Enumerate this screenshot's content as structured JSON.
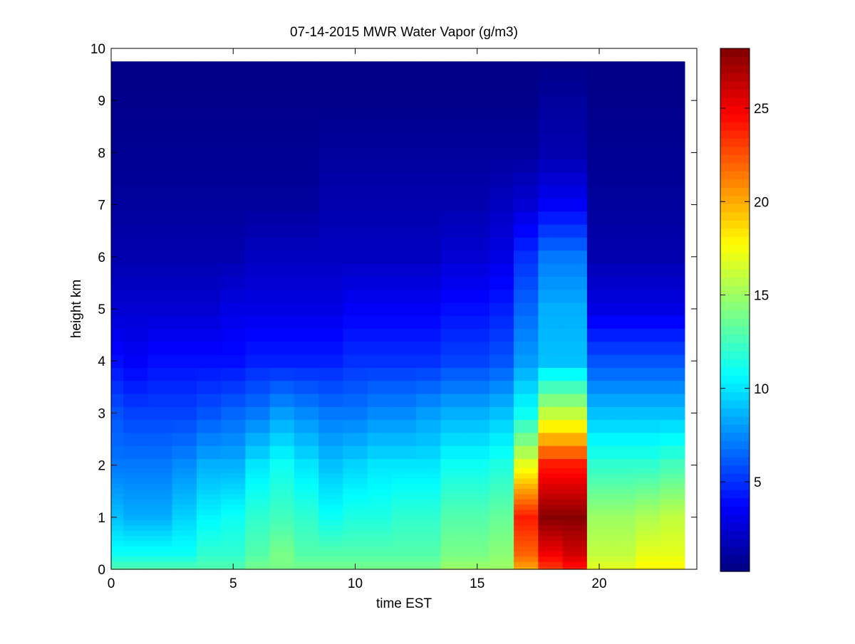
{
  "chart_data": {
    "type": "heatmap",
    "title": "07-14-2015 MWR Water Vapor (g/m3)",
    "xlabel": "time EST",
    "ylabel": "height km",
    "xlim": [
      0,
      24
    ],
    "ylim": [
      0,
      10
    ],
    "x_ticks": [
      0,
      5,
      10,
      15,
      20
    ],
    "y_ticks": [
      0,
      1,
      2,
      3,
      4,
      5,
      6,
      7,
      8,
      9,
      10
    ],
    "colormap": "jet",
    "colorbar": {
      "range": [
        0.2,
        28.2
      ],
      "ticks": [
        5,
        10,
        15,
        20,
        25
      ]
    },
    "x_centers": [
      0,
      1,
      2,
      3,
      4,
      5,
      6,
      7,
      8,
      9,
      10,
      11,
      12,
      13,
      14,
      15,
      16,
      17,
      18,
      19,
      20,
      21,
      22,
      23
    ],
    "heights": [
      0,
      0.1,
      0.2,
      0.3,
      0.4,
      0.5,
      0.6,
      0.7,
      0.8,
      0.9,
      1.0,
      1.1,
      1.2,
      1.3,
      1.4,
      1.5,
      1.6,
      1.7,
      1.8,
      1.9,
      2.0,
      2.25,
      2.5,
      2.75,
      3.0,
      3.25,
      3.5,
      3.75,
      4.0,
      4.25,
      4.5,
      4.75,
      5.0,
      5.25,
      5.5,
      5.75,
      6.0,
      6.25,
      6.5,
      6.75,
      7.0,
      7.25,
      7.5,
      7.75,
      8.0,
      8.25,
      8.5,
      8.75,
      9.0,
      9.25,
      9.5,
      9.75
    ],
    "profiles": {
      "knots_h": [
        0,
        0.3,
        1,
        2,
        3,
        4,
        5,
        6,
        7,
        8,
        9,
        9.75
      ],
      "columns": [
        [
          13,
          11,
          9,
          7,
          6,
          4,
          2.5,
          1.5,
          1,
          0.7,
          0.5,
          0.4
        ],
        [
          13,
          11,
          8.5,
          7,
          5.5,
          3.5,
          2.5,
          1.5,
          1,
          0.7,
          0.5,
          0.4
        ],
        [
          13,
          11,
          8.5,
          7,
          5.5,
          4,
          2.5,
          1.5,
          1,
          0.7,
          0.5,
          0.4
        ],
        [
          13,
          11,
          9.5,
          7.5,
          5.5,
          4,
          2.5,
          1.5,
          1,
          0.7,
          0.5,
          0.4
        ],
        [
          13,
          12,
          10.5,
          8.5,
          6,
          4,
          2.5,
          1.5,
          1,
          0.7,
          0.5,
          0.4
        ],
        [
          13,
          12,
          11,
          8.5,
          6.5,
          4,
          3,
          1.5,
          1,
          0.7,
          0.5,
          0.4
        ],
        [
          14,
          13,
          12,
          10,
          7,
          4.5,
          3,
          2,
          1,
          0.7,
          0.5,
          0.4
        ],
        [
          14,
          14,
          12.5,
          11,
          8,
          4.5,
          3,
          2,
          1,
          0.7,
          0.5,
          0.4
        ],
        [
          14,
          13,
          12,
          10,
          7.5,
          4.5,
          3,
          2,
          1,
          0.7,
          0.5,
          0.4
        ],
        [
          14,
          13,
          11,
          9,
          7,
          4.5,
          3,
          2,
          1.5,
          1,
          0.5,
          0.4
        ],
        [
          14,
          13,
          11.5,
          9.5,
          7,
          5,
          3.5,
          2,
          1.5,
          1,
          0.5,
          0.4
        ],
        [
          14,
          13,
          11.5,
          10,
          7.5,
          5,
          3.5,
          2,
          1.5,
          1,
          0.5,
          0.4
        ],
        [
          14,
          13,
          12,
          10,
          7.5,
          5,
          3.5,
          2,
          1.5,
          1,
          0.5,
          0.4
        ],
        [
          14,
          13,
          12,
          10,
          8,
          5,
          3.5,
          2,
          1.5,
          1,
          0.5,
          0.4
        ],
        [
          15,
          14,
          13,
          11,
          8.5,
          5.5,
          4,
          2.5,
          1.5,
          1,
          0.5,
          0.4
        ],
        [
          15,
          14,
          13,
          11,
          8.5,
          5.5,
          4,
          2.5,
          1.5,
          1,
          0.5,
          0.4
        ],
        [
          15,
          14.5,
          13.5,
          11.5,
          9,
          6,
          4.5,
          3,
          2,
          1,
          0.5,
          0.4
        ],
        [
          20,
          22,
          24,
          17,
          11,
          8,
          6.5,
          5,
          2.5,
          1,
          0.5,
          0.4
        ],
        [
          23,
          25,
          28,
          24,
          16,
          9,
          8.5,
          7,
          3.5,
          1.5,
          1,
          0.4
        ],
        [
          24,
          26,
          28,
          24,
          16,
          9,
          8.5,
          7,
          3.5,
          1.5,
          1,
          0.4
        ],
        [
          17,
          16,
          15,
          12,
          9,
          6,
          3,
          1.5,
          1,
          0.7,
          0.5,
          0.4
        ],
        [
          17,
          16,
          15,
          12,
          9,
          6,
          3,
          1.5,
          1,
          0.7,
          0.5,
          0.4
        ],
        [
          18,
          17,
          15.5,
          12,
          9,
          6,
          3,
          1.5,
          1,
          0.7,
          0.5,
          0.4
        ],
        [
          18,
          17,
          16,
          12.5,
          9,
          6,
          3,
          1.5,
          1,
          0.7,
          0.5,
          0.4
        ]
      ]
    }
  }
}
